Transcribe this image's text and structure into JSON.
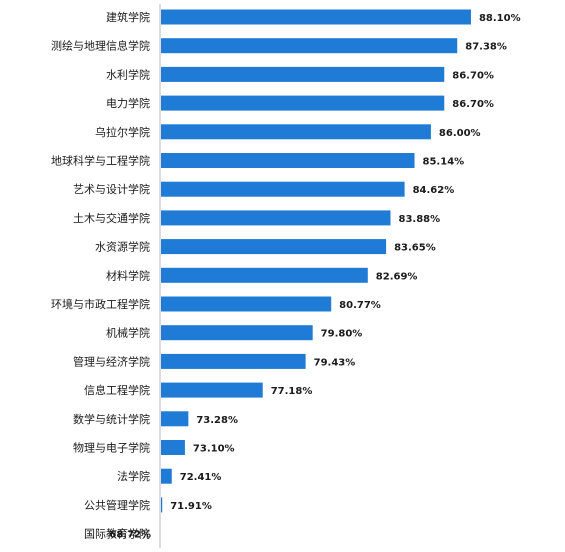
{
  "chart_data": {
    "type": "bar",
    "orientation": "horizontal",
    "categories": [
      "建筑学院",
      "测绘与地理信息学院",
      "水利学院",
      "电力学院",
      "乌拉尔学院",
      "地球科学与工程学院",
      "艺术与设计学院",
      "土木与交通学院",
      "水资源学院",
      "材料学院",
      "环境与市政工程学院",
      "机械学院",
      "管理与经济学院",
      "信息工程学院",
      "数学与统计学院",
      "物理与电子学院",
      "法学院",
      "公共管理学院",
      "国际教育学院"
    ],
    "values": [
      88.1,
      87.38,
      86.7,
      86.7,
      86.0,
      85.14,
      84.62,
      83.88,
      83.65,
      82.69,
      80.77,
      79.8,
      79.43,
      77.18,
      73.28,
      73.1,
      72.41,
      71.91,
      68.72
    ],
    "value_labels": [
      "88.10%",
      "87.38%",
      "86.70%",
      "86.70%",
      "86.00%",
      "85.14%",
      "84.62%",
      "83.88%",
      "83.65%",
      "82.69%",
      "80.77%",
      "79.80%",
      "79.43%",
      "77.18%",
      "73.28%",
      "73.10%",
      "72.41%",
      "71.91%",
      "68.72%"
    ],
    "xlim": [
      0,
      100
    ],
    "grid": false,
    "legend": "none",
    "bar_color": "#1f7bd6"
  }
}
